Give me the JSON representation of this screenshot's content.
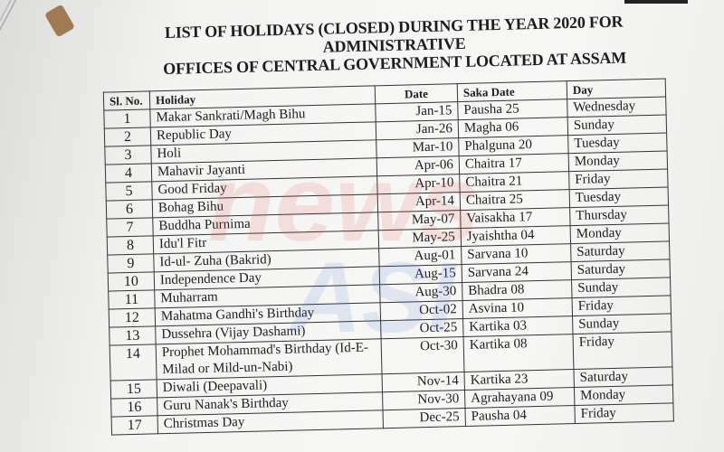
{
  "title_line1": "LIST OF HOLIDAYS (CLOSED) DURING THE YEAR 2020 FOR ADMINISTRATIVE",
  "title_line2": "OFFICES OF CENTRAL GOVERNMENT LOCATED AT ASSAM",
  "headers": {
    "sl": "Sl. No.",
    "holiday": "Holiday",
    "date": "Date",
    "saka": "Saka Date",
    "day": "Day"
  },
  "watermark": {
    "line1": "news",
    "line2": "ASI"
  },
  "rows": [
    {
      "sl": "1",
      "holiday": "Makar Sankrati/Magh Bihu",
      "date": "Jan-15",
      "saka": "Pausha 25",
      "day": "Wednesday"
    },
    {
      "sl": "2",
      "holiday": "Republic Day",
      "date": "Jan-26",
      "saka": "Magha 06",
      "day": "Sunday"
    },
    {
      "sl": "3",
      "holiday": "Holi",
      "date": "Mar-10",
      "saka": "Phalguna 20",
      "day": "Tuesday"
    },
    {
      "sl": "4",
      "holiday": "Mahavir Jayanti",
      "date": "Apr-06",
      "saka": "Chaitra 17",
      "day": "Monday"
    },
    {
      "sl": "5",
      "holiday": "Good Friday",
      "date": "Apr-10",
      "saka": "Chaitra 21",
      "day": "Friday"
    },
    {
      "sl": "6",
      "holiday": "Bohag Bihu",
      "date": "Apr-14",
      "saka": "Chaitra 25",
      "day": "Tuesday"
    },
    {
      "sl": "7",
      "holiday": "Buddha Purnima",
      "date": "May-07",
      "saka": "Vaisakha 17",
      "day": "Thursday"
    },
    {
      "sl": "8",
      "holiday": "Idu'l Fitr",
      "date": "May-25",
      "saka": "Jyaishtha 04",
      "day": "Monday"
    },
    {
      "sl": "9",
      "holiday": "Id-ul- Zuha (Bakrid)",
      "date": "Aug-01",
      "saka": "Sarvana 10",
      "day": "Saturday"
    },
    {
      "sl": "10",
      "holiday": "Independence Day",
      "date": "Aug-15",
      "saka": "Sarvana 24",
      "day": "Saturday"
    },
    {
      "sl": "11",
      "holiday": "Muharram",
      "date": "Aug-30",
      "saka": "Bhadra 08",
      "day": "Sunday"
    },
    {
      "sl": "12",
      "holiday": "Mahatma Gandhi's Birthday",
      "date": "Oct-02",
      "saka": "Asvina 10",
      "day": "Friday"
    },
    {
      "sl": "13",
      "holiday": "Dussehra (Vijay Dashami)",
      "date": "Oct-25",
      "saka": "Kartika 03",
      "day": "Sunday"
    },
    {
      "sl": "14",
      "holiday": "Prophet Mohammad's Birthday (Id-E-",
      "holiday2": "Milad or Mild-un-Nabi)",
      "date": "Oct-30",
      "saka": "Kartika 08",
      "day": "Friday"
    },
    {
      "sl": "15",
      "holiday": "Diwali (Deepavali)",
      "date": "Nov-14",
      "saka": "Kartika 23",
      "day": "Saturday"
    },
    {
      "sl": "16",
      "holiday": "Guru Nanak's Birthday",
      "date": "Nov-30",
      "saka": "Agrahayana 09",
      "day": "Monday"
    },
    {
      "sl": "17",
      "holiday": "Christmas Day",
      "date": "Dec-25",
      "saka": "Pausha 04",
      "day": "Friday"
    }
  ]
}
